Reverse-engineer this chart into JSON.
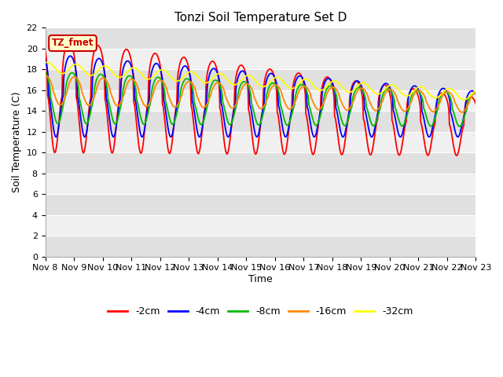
{
  "title": "Tonzi Soil Temperature Set D",
  "xlabel": "Time",
  "ylabel": "Soil Temperature (C)",
  "ylim": [
    0,
    22
  ],
  "yticks": [
    0,
    2,
    4,
    6,
    8,
    10,
    12,
    14,
    16,
    18,
    20,
    22
  ],
  "xtick_labels": [
    "Nov 8",
    "Nov 9",
    "Nov 10",
    "Nov 11",
    "Nov 12",
    "Nov 13",
    "Nov 14",
    "Nov 15",
    "Nov 16",
    "Nov 17",
    "Nov 18",
    "Nov 19",
    "Nov 20",
    "Nov 21",
    "Nov 22",
    "Nov 23"
  ],
  "colors": {
    "-2cm": "#ff0000",
    "-4cm": "#0000ff",
    "-8cm": "#00bb00",
    "-16cm": "#ff8800",
    "-32cm": "#ffff00"
  },
  "annotation_text": "TZ_fmet",
  "annotation_bg": "#ffffcc",
  "annotation_border": "#cc0000",
  "band_light": "#f0f0f0",
  "band_dark": "#e0e0e0",
  "title_fontsize": 11,
  "label_fontsize": 9,
  "tick_fontsize": 8
}
